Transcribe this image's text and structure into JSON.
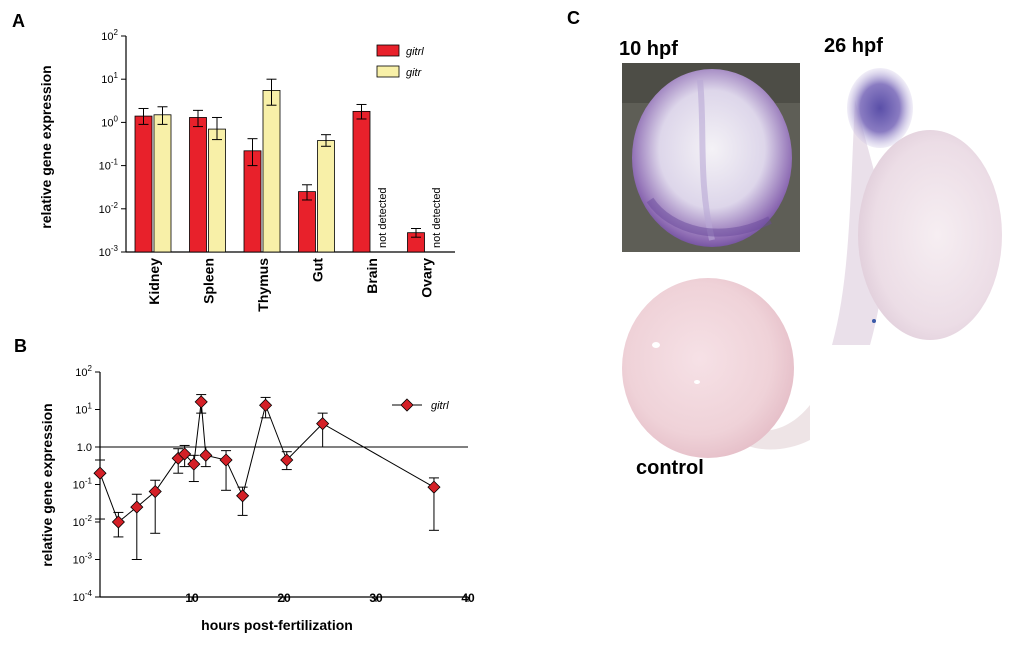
{
  "panels": {
    "a": "A",
    "b": "B",
    "c": "C"
  },
  "chart_data": [
    {
      "type": "bar",
      "panel": "A",
      "ylabel": "relative gene expression",
      "yscale": "log",
      "ylim": [
        0.001,
        100
      ],
      "ytick_labels": [
        {
          "base": "10",
          "exp": "2"
        },
        {
          "base": "10",
          "exp": "1"
        },
        {
          "base": "10",
          "exp": "0"
        },
        {
          "base": "10",
          "exp": "-1"
        },
        {
          "base": "10",
          "exp": "-2"
        },
        {
          "base": "10",
          "exp": "-3"
        }
      ],
      "categories": [
        "Kidney",
        "Spleen",
        "Thymus",
        "Gut",
        "Brain",
        "Ovary"
      ],
      "series": [
        {
          "name": "gitrl",
          "color": "#e8212b",
          "values": [
            1.4,
            1.3,
            0.22,
            0.025,
            1.8,
            0.0028
          ],
          "err_low": [
            0.9,
            0.8,
            0.1,
            0.016,
            1.2,
            0.0022
          ],
          "err_high": [
            2.1,
            1.9,
            0.42,
            0.036,
            2.6,
            0.0035
          ]
        },
        {
          "name": "gitr",
          "color": "#f8f0a8",
          "values": [
            1.5,
            0.7,
            5.5,
            0.38,
            null,
            null
          ],
          "err_low": [
            0.9,
            0.4,
            2.5,
            0.28,
            null,
            null
          ],
          "err_high": [
            2.3,
            1.3,
            10.0,
            0.52,
            null,
            null
          ]
        }
      ],
      "annotations": [
        "not detected",
        "not detected"
      ],
      "legend_position": "top-right"
    },
    {
      "type": "line",
      "panel": "B",
      "xlabel": "hours post-fertilization",
      "ylabel": "relative gene expression",
      "yscale": "log",
      "xlim": [
        0,
        40
      ],
      "ylim": [
        0.0001,
        100
      ],
      "xticks": [
        "10",
        "20",
        "30",
        "40"
      ],
      "ytick_labels": [
        {
          "base": "10",
          "exp": "2"
        },
        {
          "base": "10",
          "exp": "1"
        },
        {
          "base": "1.0",
          "exp": ""
        },
        {
          "base": "10",
          "exp": "-1"
        },
        {
          "base": "10",
          "exp": "-2"
        },
        {
          "base": "10",
          "exp": "-3"
        },
        {
          "base": "10",
          "exp": "-4"
        }
      ],
      "reference_line": 1.0,
      "series": [
        {
          "name": "gitrl",
          "color": "#d42027",
          "x": [
            0,
            2,
            4,
            6,
            8.5,
            9.2,
            10.2,
            11,
            11.5,
            13.7,
            15.5,
            18,
            20.3,
            24.2,
            36.3
          ],
          "y": [
            0.2,
            0.01,
            0.025,
            0.065,
            0.5,
            0.65,
            0.35,
            16,
            0.6,
            0.45,
            0.05,
            13,
            0.45,
            4.2,
            0.085
          ],
          "err_low": [
            0.012,
            0.004,
            0.001,
            0.005,
            0.2,
            0.3,
            0.12,
            8,
            0.3,
            0.07,
            0.015,
            6,
            0.25,
            1.0,
            0.006
          ],
          "err_high": [
            0.45,
            0.018,
            0.055,
            0.13,
            0.9,
            1.1,
            0.6,
            25,
            1.0,
            0.8,
            0.085,
            21,
            0.75,
            8.0,
            0.15
          ]
        }
      ],
      "legend_position": "top-right"
    }
  ],
  "images": {
    "stage_1": "10 hpf",
    "stage_2": "26 hpf",
    "control": "control"
  }
}
